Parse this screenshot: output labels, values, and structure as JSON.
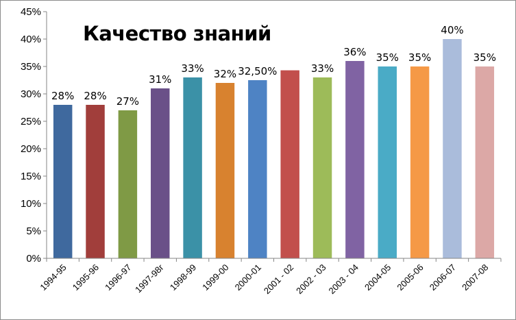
{
  "chart_data": {
    "type": "bar",
    "title": "Качество знаний",
    "xlabel": "",
    "ylabel": "",
    "ylim": [
      0,
      45
    ],
    "y_tick_step": 5,
    "y_tick_labels": [
      "0%",
      "5%",
      "10%",
      "15%",
      "20%",
      "25%",
      "30%",
      "35%",
      "40%",
      "45%"
    ],
    "grid": false,
    "legend": "none",
    "categories": [
      "1994-95",
      "1995-96",
      "1996-97",
      "1997-98г",
      "1998-99",
      "1999-00",
      "2000-01",
      "2001 - 02",
      "2002 - 03",
      "2003 - 04",
      "2004-05",
      "2005-06",
      "2006-07",
      "2007-08"
    ],
    "series": [
      {
        "values": [
          28,
          28,
          27,
          31,
          33,
          32,
          32.5,
          34.3,
          33,
          36,
          35,
          35,
          40,
          35
        ],
        "data_labels": [
          "28%",
          "28%",
          "27%",
          "31%",
          "33%",
          "32%",
          "32,50%",
          "",
          "33%",
          "36%",
          "35%",
          "35%",
          "40%",
          "35%"
        ],
        "colors": [
          "#3f699e",
          "#a13e3b",
          "#7f9a45",
          "#6a5088",
          "#3b91a7",
          "#d8822f",
          "#4e83c4",
          "#c24f4c",
          "#9dbb59",
          "#8063a3",
          "#4aabc6",
          "#f59946",
          "#aabcdb",
          "#dca8a6"
        ]
      }
    ]
  }
}
